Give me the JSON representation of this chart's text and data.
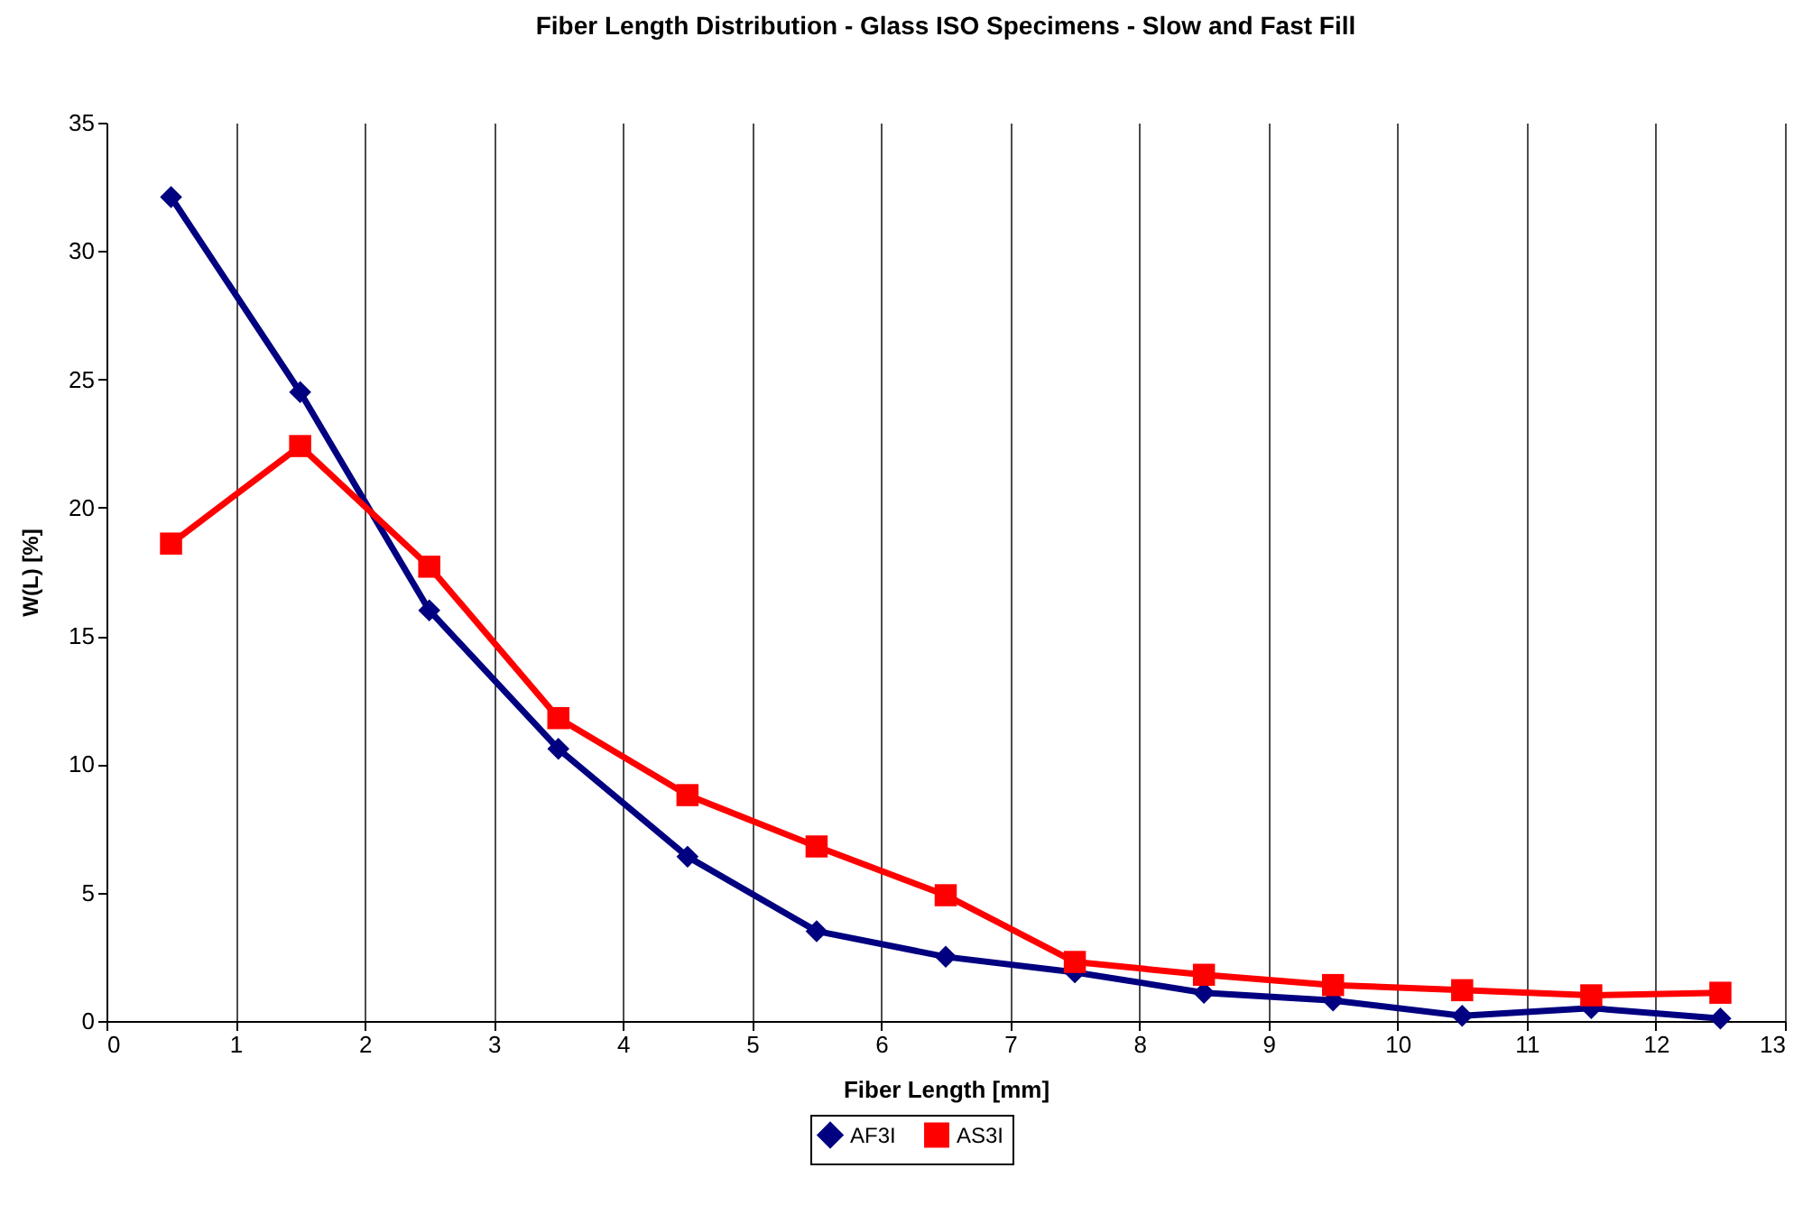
{
  "chart_data": {
    "type": "line",
    "title": "Fiber Length Distribution - Glass ISO Specimens - Slow and Fast Fill",
    "xlabel": "Fiber Length [mm]",
    "ylabel": "W(L) [%]",
    "x": [
      0.5,
      1.5,
      2.5,
      3.5,
      4.5,
      5.5,
      6.5,
      7.5,
      8.5,
      9.5,
      10.5,
      11.5,
      12.5
    ],
    "series": [
      {
        "name": "AF3I",
        "color": "#000080",
        "marker": "diamond",
        "values": [
          32.1,
          24.5,
          16.0,
          10.6,
          6.4,
          3.5,
          2.5,
          1.9,
          1.1,
          0.8,
          0.2,
          0.5,
          0.1
        ]
      },
      {
        "name": "AS3I",
        "color": "#ff0000",
        "marker": "square",
        "values": [
          18.6,
          22.4,
          17.7,
          11.8,
          8.8,
          6.8,
          4.9,
          2.3,
          1.8,
          1.4,
          1.2,
          1.0,
          1.1
        ]
      }
    ],
    "xlim": [
      0,
      13
    ],
    "xticks": [
      0,
      1,
      2,
      3,
      4,
      5,
      6,
      7,
      8,
      9,
      10,
      11,
      12,
      13
    ],
    "ylim": [
      0,
      35
    ],
    "yticks": [
      0,
      5,
      10,
      15,
      20,
      25,
      30,
      35
    ],
    "grid": "x",
    "legend": "bottom",
    "line_style": "solid"
  }
}
